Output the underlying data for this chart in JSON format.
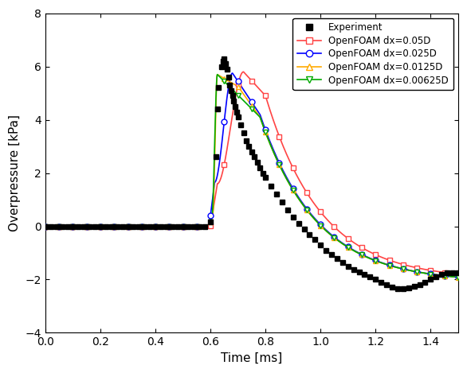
{
  "title": "",
  "xlabel": "Time [ms]",
  "ylabel": "Overpressure [kPa]",
  "xlim": [
    0,
    1.5
  ],
  "ylim": [
    -4,
    8
  ],
  "xticks": [
    0,
    0.2,
    0.4,
    0.6,
    0.8,
    1.0,
    1.2,
    1.4
  ],
  "yticks": [
    -4,
    -2,
    0,
    2,
    4,
    6,
    8
  ],
  "legend_entries": [
    "Experiment",
    "OpenFOAM dx=0.05D",
    "OpenFOAM dx=0.025D",
    "OpenFOAM dx=0.0125D",
    "OpenFOAM dx=0.00625D"
  ],
  "colors": {
    "experiment": "#000000",
    "foam1": "#ff4444",
    "foam2": "#0000ff",
    "foam3": "#ffaa00",
    "foam4": "#00aa00"
  },
  "experiment_x": [
    0.0,
    0.02,
    0.04,
    0.06,
    0.08,
    0.1,
    0.12,
    0.14,
    0.16,
    0.18,
    0.2,
    0.22,
    0.24,
    0.26,
    0.28,
    0.3,
    0.32,
    0.34,
    0.36,
    0.38,
    0.4,
    0.42,
    0.44,
    0.46,
    0.48,
    0.5,
    0.52,
    0.54,
    0.56,
    0.58,
    0.6,
    0.62,
    0.625,
    0.63,
    0.64,
    0.645,
    0.65,
    0.655,
    0.66,
    0.665,
    0.67,
    0.675,
    0.68,
    0.685,
    0.69,
    0.695,
    0.7,
    0.71,
    0.72,
    0.73,
    0.74,
    0.75,
    0.76,
    0.77,
    0.78,
    0.79,
    0.8,
    0.82,
    0.84,
    0.86,
    0.88,
    0.9,
    0.92,
    0.94,
    0.96,
    0.98,
    1.0,
    1.02,
    1.04,
    1.06,
    1.08,
    1.1,
    1.12,
    1.14,
    1.16,
    1.18,
    1.2,
    1.22,
    1.24,
    1.26,
    1.28,
    1.3,
    1.32,
    1.34,
    1.36,
    1.38,
    1.4,
    1.42,
    1.44,
    1.46,
    1.48,
    1.5
  ],
  "experiment_y": [
    0.0,
    0.0,
    0.0,
    0.0,
    0.0,
    0.0,
    0.0,
    0.0,
    0.0,
    0.0,
    0.0,
    0.0,
    0.0,
    0.0,
    0.0,
    0.0,
    0.0,
    0.0,
    0.0,
    0.0,
    0.0,
    0.0,
    0.0,
    0.0,
    0.0,
    0.0,
    0.0,
    0.0,
    0.0,
    0.0,
    0.15,
    2.6,
    4.4,
    5.2,
    6.0,
    6.2,
    6.3,
    6.1,
    5.9,
    5.6,
    5.3,
    5.1,
    4.9,
    4.7,
    4.5,
    4.3,
    4.1,
    3.8,
    3.5,
    3.2,
    3.0,
    2.8,
    2.6,
    2.4,
    2.2,
    2.0,
    1.85,
    1.5,
    1.2,
    0.9,
    0.6,
    0.35,
    0.1,
    -0.1,
    -0.3,
    -0.5,
    -0.7,
    -0.9,
    -1.05,
    -1.2,
    -1.35,
    -1.5,
    -1.62,
    -1.72,
    -1.82,
    -1.9,
    -2.0,
    -2.1,
    -2.2,
    -2.28,
    -2.35,
    -2.35,
    -2.3,
    -2.25,
    -2.2,
    -2.1,
    -2.0,
    -1.9,
    -1.8,
    -1.75,
    -1.75,
    -1.75
  ]
}
